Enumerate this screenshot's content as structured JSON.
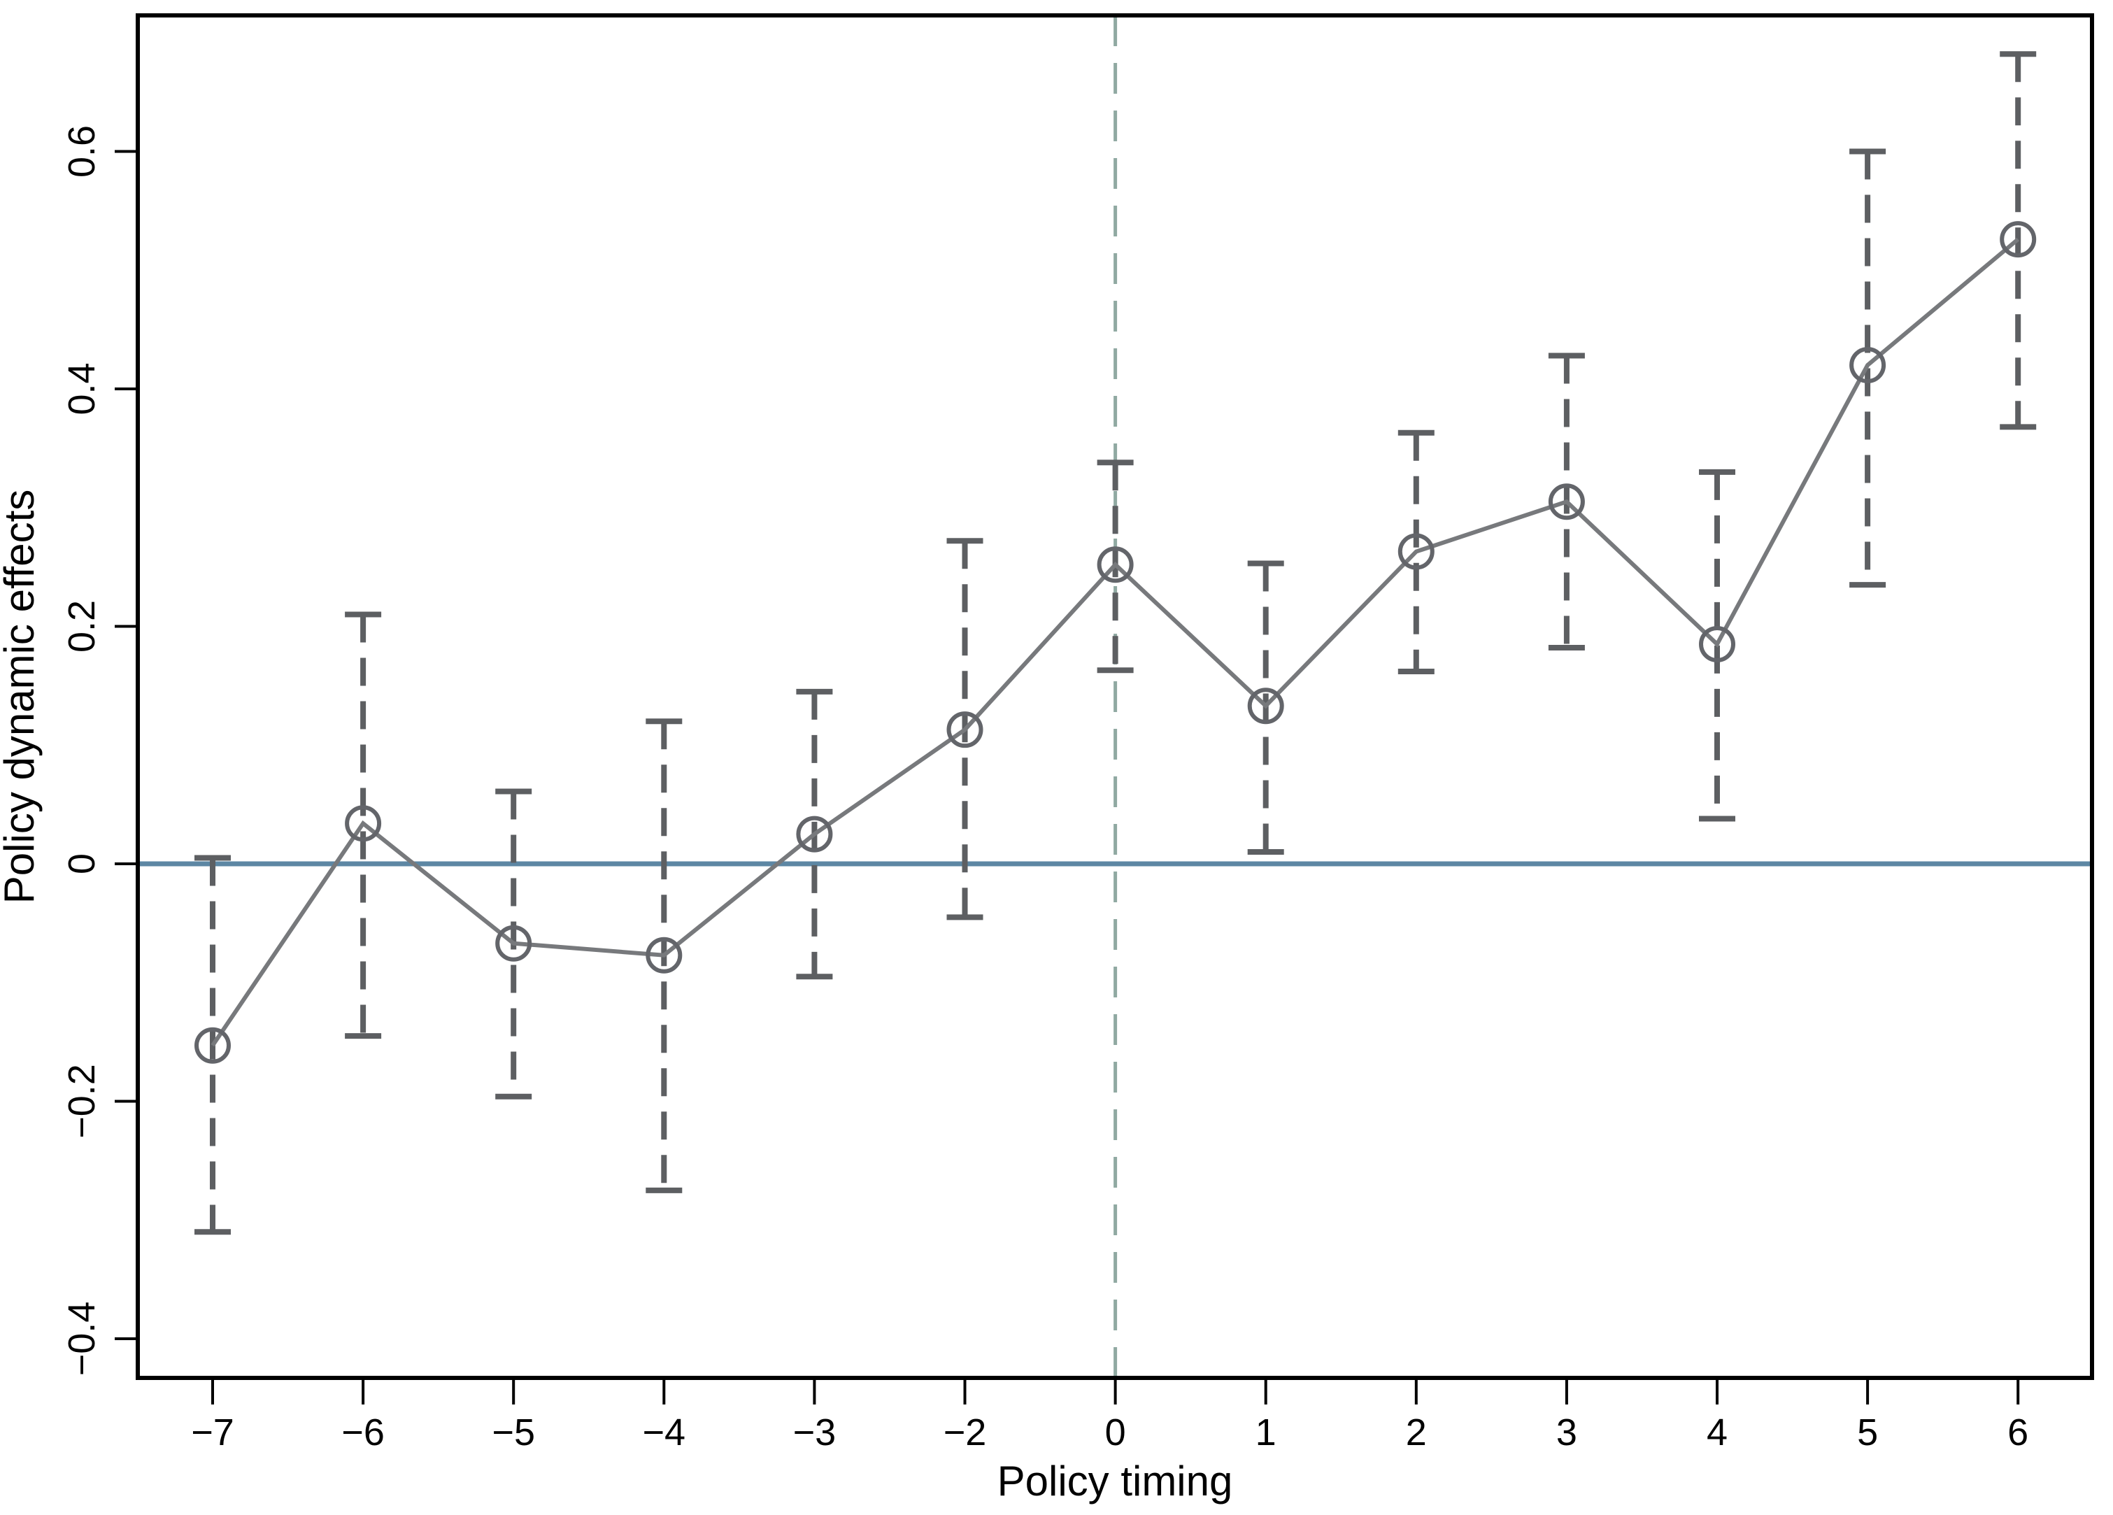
{
  "figure": {
    "background": "#ffffff"
  },
  "chart_data": {
    "type": "line",
    "subtype": "event-study-with-error-bars",
    "title": "",
    "xlabel": "Policy timing",
    "ylabel": "Policy dynamic effects",
    "categories": [
      "−7",
      "−6",
      "−5",
      "−4",
      "−3",
      "−2",
      "0",
      "1",
      "2",
      "3",
      "4",
      "5",
      "6"
    ],
    "series": [
      {
        "name": "Policy dynamic effects",
        "marker": "hollow-circle",
        "values": [
          -0.153,
          0.034,
          -0.067,
          -0.077,
          0.025,
          0.113,
          0.252,
          0.133,
          0.263,
          0.305,
          0.185,
          0.42,
          0.526
        ],
        "ci_low": [
          -0.31,
          -0.145,
          -0.196,
          -0.275,
          -0.095,
          -0.045,
          0.163,
          0.01,
          0.162,
          0.182,
          0.038,
          0.235,
          0.368
        ],
        "ci_high": [
          0.005,
          0.21,
          0.061,
          0.12,
          0.145,
          0.272,
          0.338,
          0.253,
          0.363,
          0.428,
          0.33,
          0.6,
          0.682
        ]
      }
    ],
    "y_ticks": [
      0.6,
      0.4,
      0.2,
      0,
      -0.2,
      -0.4
    ],
    "y_tick_labels": [
      "0.6",
      "0.4",
      "0.2",
      "0",
      "−0.2",
      "−0.4"
    ],
    "ylim": [
      -0.43,
      0.715
    ],
    "grid": false,
    "legend_position": "none",
    "reference_lines": {
      "zero_line": {
        "y": 0,
        "style": "solid",
        "color": "#5d87a4"
      },
      "event_line": {
        "x_category": "0",
        "style": "dashed",
        "color": "#90a9a2"
      }
    },
    "colors": {
      "series_line": "#77797c",
      "marker_stroke": "#63656a",
      "error_bar": "#5d5f62",
      "axis": "#000000",
      "background": "#ffffff"
    }
  }
}
